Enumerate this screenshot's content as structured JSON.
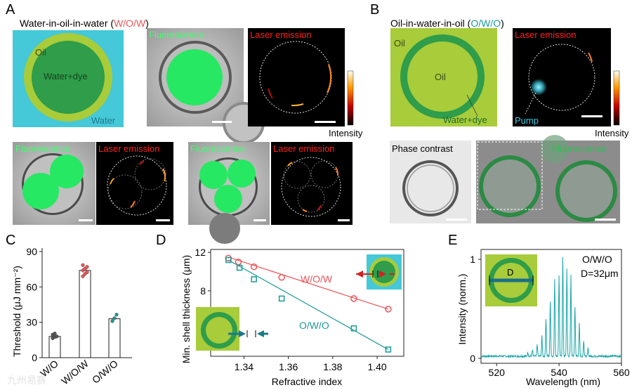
{
  "panelA": {
    "letter": "A",
    "title_main": "Water-in-oil-in-water (",
    "title_abbr": "W/O/W",
    "title_close": ")",
    "schematic_labels": {
      "outer": "Oil",
      "core": "Water+dye",
      "medium": "Water"
    },
    "img_fluorescence": "Fluorescence",
    "img_laser": "Laser emission",
    "colorbar_label": "Intensity"
  },
  "panelB": {
    "letter": "B",
    "title_main": "Oil-in-water-in-oil (",
    "title_abbr": "O/W/O",
    "title_close": ")",
    "schematic_labels": {
      "outer": "Oil",
      "core": "Oil",
      "shell": "Water+dye"
    },
    "img_laser": "Laser emission",
    "pump_label": "Pump",
    "colorbar_label": "Intensity",
    "img_phase": "Phase contrast",
    "img_fluorescence": "Fluorescence"
  },
  "colors": {
    "cyan": "#45c8d8",
    "lime": "#a8cc3a",
    "green": "#2f9d4a",
    "wow": "#e8555a",
    "owo": "#1a9a98"
  },
  "chart_data": [
    {
      "id": "C",
      "letter": "C",
      "type": "bar",
      "ylabel": "Threshold (μJ mm⁻²)",
      "ylim": [
        0,
        90
      ],
      "yticks": [
        0,
        30,
        60,
        90
      ],
      "categories": [
        "W/O",
        "W/O/W",
        "O/W/O"
      ],
      "values": [
        18,
        74,
        33
      ],
      "point_colors": [
        "#555555",
        "#e8555a",
        "#1a9a98"
      ],
      "points": [
        [
          16.5,
          17.5,
          18,
          19.5,
          20.5
        ],
        [
          69,
          71,
          72.5,
          74,
          75.5,
          77,
          78.5
        ],
        [
          31,
          33.5,
          36.5
        ]
      ]
    },
    {
      "id": "D",
      "letter": "D",
      "type": "scatter",
      "xlabel": "Refractive index",
      "ylabel": "Min. shell thickness (μm)",
      "xlim": [
        1.325,
        1.412
      ],
      "ylim": [
        1.2,
        12.3
      ],
      "xticks": [
        "1.34",
        "1.36",
        "1.38",
        "1.40"
      ],
      "yticks": [
        4,
        8,
        12
      ],
      "series": [
        {
          "name": "W/O/W",
          "x": [
            1.333,
            1.3375,
            1.3445,
            1.357,
            1.3895,
            1.405
          ],
          "y": [
            11.4,
            11.0,
            10.5,
            9.4,
            7.2,
            6.1
          ],
          "fit": [
            [
              1.333,
              11.5
            ],
            [
              1.405,
              6.1
            ]
          ]
        },
        {
          "name": "O/W/O",
          "x": [
            1.333,
            1.338,
            1.3445,
            1.357,
            1.3895,
            1.405
          ],
          "y": [
            11.2,
            10.4,
            9.2,
            7.2,
            4.1,
            1.9
          ],
          "fit": [
            [
              1.333,
              11.2
            ],
            [
              1.405,
              1.9
            ]
          ]
        }
      ]
    },
    {
      "id": "E",
      "letter": "E",
      "type": "line",
      "xlabel": "Wavelength (nm)",
      "ylabel": "Intensity (norm.)",
      "xlim": [
        515,
        560
      ],
      "ylim": [
        -0.05,
        1.1
      ],
      "xticks": [
        520,
        540,
        560
      ],
      "yticks": [
        0,
        1
      ],
      "annotation": "O/W/O",
      "annotation2": "D=32μm",
      "inset_label": "D",
      "peaks": [
        [
          530,
          0.04
        ],
        [
          531.5,
          0.06
        ],
        [
          533,
          0.12
        ],
        [
          534.5,
          0.2
        ],
        [
          535.8,
          0.38
        ],
        [
          537.2,
          0.56
        ],
        [
          538.6,
          0.78
        ],
        [
          540,
          0.82
        ],
        [
          541.2,
          1.0
        ],
        [
          542.5,
          0.88
        ],
        [
          543.8,
          0.82
        ],
        [
          545.1,
          0.5
        ],
        [
          546.5,
          0.34
        ],
        [
          547.9,
          0.16
        ],
        [
          549.3,
          0.08
        ]
      ]
    }
  ],
  "watermark": "九州易赛"
}
